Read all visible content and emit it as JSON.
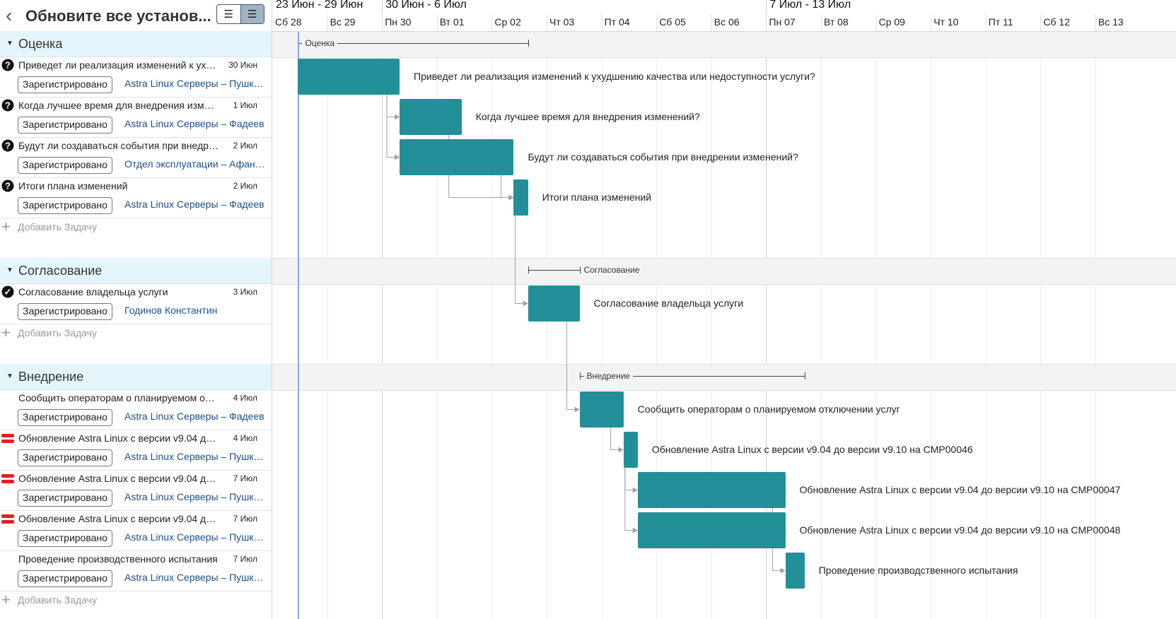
{
  "header": {
    "title": "Обновите все установ...",
    "back_icon": "chevron-left-icon",
    "view_options": [
      "list-view-icon",
      "gantt-view-icon"
    ]
  },
  "timeline": {
    "weeks": [
      "23 Июн - 29 Июн",
      "30 Июн - 6 Июл",
      "7 Июл - 13 Июл"
    ],
    "days": [
      "Сб 28",
      "Вс 29",
      "Пн 30",
      "Вт 01",
      "Ср 02",
      "Чт 03",
      "Пт 04",
      "Сб 05",
      "Вс 06",
      "Пн 07",
      "Вт 08",
      "Ср 09",
      "Чт 10",
      "Пт 11",
      "Сб 12",
      "Вс 13"
    ]
  },
  "add_task_label": "Добавить Задачу",
  "groups": [
    {
      "name": "Оценка",
      "tasks": [
        {
          "icon": "question-icon",
          "name": "Приведет ли реализация изменений к ухудшению качества или недоступности услуги?",
          "date": "30 Июн",
          "status": "Зарегистрировано",
          "assignee": "Astra Linux Серверы – Пушкарев",
          "bar_label": "Приведет ли реализация изменений к ухудшению качества или недоступности услуги?"
        },
        {
          "icon": "question-icon",
          "name": "Когда лучшее время для внедрения изменений?",
          "date": "1 Июл",
          "status": "Зарегистрировано",
          "assignee": "Astra Linux Серверы – Фадеев",
          "bar_label": "Когда лучшее время для внедрения изменений?"
        },
        {
          "icon": "question-icon",
          "name": "Будут ли создаваться события при внедрении изменений?",
          "date": "2 Июл",
          "status": "Зарегистрировано",
          "assignee": "Отдел эксплуатации – Афанасьев",
          "bar_label": "Будут ли создаваться события при внедрении изменений?"
        },
        {
          "icon": "question-icon",
          "name": "Итоги плана изменений",
          "date": "2 Июл",
          "status": "Зарегистрировано",
          "assignee": "Astra Linux Серверы – Фадеев",
          "bar_label": "Итоги плана изменений"
        }
      ]
    },
    {
      "name": "Согласование",
      "tasks": [
        {
          "icon": "check-circle-icon",
          "name": "Согласование владельца услуги",
          "date": "3 Июл",
          "status": "Зарегистрировано",
          "assignee": "Годинов Константин",
          "bar_label": "Согласование владельца услуги"
        }
      ]
    },
    {
      "name": "Внедрение",
      "tasks": [
        {
          "icon": "",
          "name": "Сообщить операторам о планируемом отключении услуг",
          "date": "4 Июл",
          "status": "Зарегистрировано",
          "assignee": "Astra Linux Серверы – Фадеев",
          "bar_label": "Сообщить операторам о планируемом отключении услуг"
        },
        {
          "icon": "high-priority-icon",
          "name": "Обновление Astra Linux с версии v9.04 до версии v9.10 на CMP00046",
          "date": "4 Июл",
          "status": "Зарегистрировано",
          "assignee": "Astra Linux Серверы – Пушкарев",
          "bar_label": "Обновление Astra Linux с версии v9.04 до версии v9.10 на CMP00046"
        },
        {
          "icon": "high-priority-icon",
          "name": "Обновление Astra Linux с версии v9.04 до версии v9.10 на CMP00047",
          "date": "7 Июл",
          "status": "Зарегистрировано",
          "assignee": "Astra Linux Серверы – Пушкарев",
          "bar_label": "Обновление Astra Linux с версии v9.04 до версии v9.10 на CMP00047"
        },
        {
          "icon": "high-priority-icon",
          "name": "Обновление Astra Linux с версии v9.04 до версии v9.10 на CMP00048",
          "date": "7 Июл",
          "status": "Зарегистрировано",
          "assignee": "Astra Linux Серверы – Пушкарев",
          "bar_label": "Обновление Astra Linux с версии v9.04 до версии v9.10 на CMP00048"
        },
        {
          "icon": "",
          "name": "Проведение производственного испытания",
          "date": "7 Июл",
          "status": "Зарегистрировано",
          "assignee": "Astra Linux Серверы – Пушкарев",
          "bar_label": "Проведение производственного испытания"
        }
      ]
    }
  ],
  "colors": {
    "bar": "#238f99",
    "group_bg": "#e4f6fb",
    "today_line": "#8ea3e8",
    "priority": "#e02020"
  }
}
